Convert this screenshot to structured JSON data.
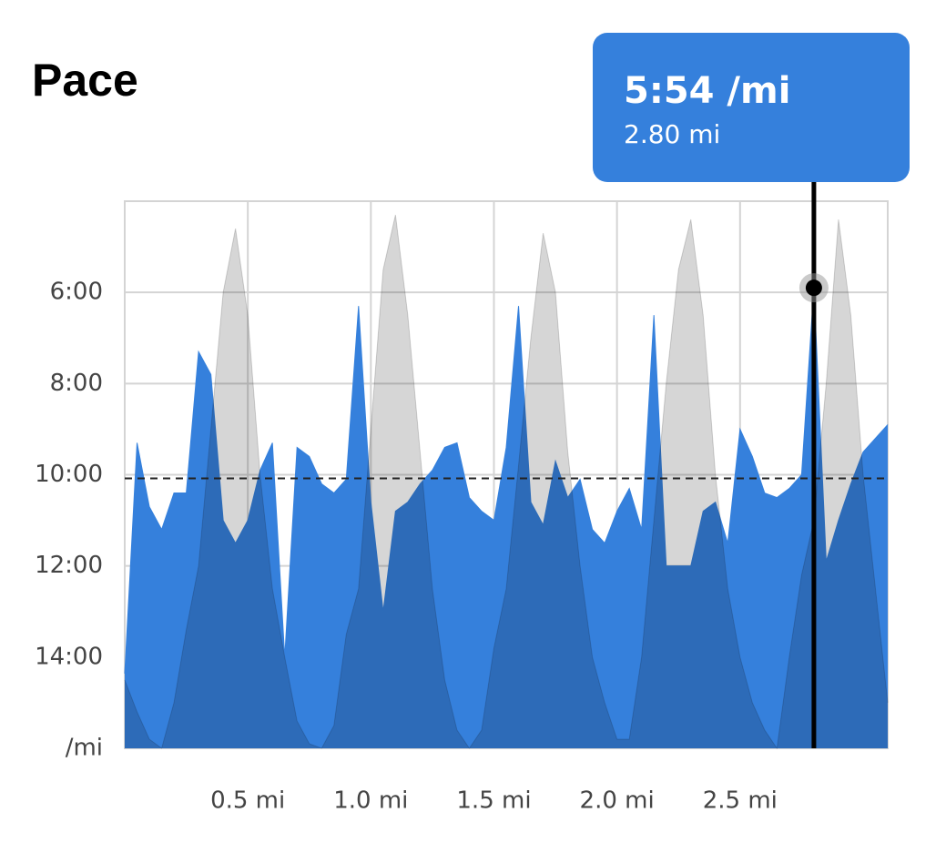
{
  "chart_data": {
    "type": "area",
    "title": "Pace",
    "x": [
      0,
      0.05,
      0.1,
      0.15,
      0.2,
      0.25,
      0.3,
      0.35,
      0.4,
      0.45,
      0.5,
      0.55,
      0.6,
      0.65,
      0.7,
      0.75,
      0.8,
      0.85,
      0.9,
      0.95,
      1,
      1.05,
      1.1,
      1.15,
      1.2,
      1.25,
      1.3,
      1.35,
      1.4,
      1.45,
      1.5,
      1.55,
      1.6,
      1.65,
      1.7,
      1.75,
      1.8,
      1.85,
      1.9,
      1.95,
      2,
      2.05,
      2.1,
      2.15,
      2.2,
      2.25,
      2.3,
      2.35,
      2.4,
      2.45,
      2.5,
      2.55,
      2.6,
      2.65,
      2.7,
      2.75,
      2.8,
      2.85,
      2.9,
      2.95,
      3,
      3.05,
      3.1
    ],
    "series": [
      {
        "color": "#3580dc",
        "values": [
          14.36,
          9.3,
          10.7,
          11.2,
          10.4,
          10.4,
          7.3,
          7.8,
          11.0,
          11.5,
          11.0,
          9.9,
          9.3,
          14.0,
          9.4,
          9.6,
          10.2,
          10.4,
          10.1,
          6.3,
          10.6,
          13.0,
          10.8,
          10.6,
          10.2,
          9.9,
          9.4,
          9.3,
          10.5,
          10.8,
          11.0,
          9.4,
          6.3,
          10.6,
          11.1,
          9.7,
          10.5,
          10.1,
          11.2,
          11.5,
          10.8,
          10.3,
          11.2,
          6.5,
          12.0,
          12.0,
          12.0,
          10.8,
          10.6,
          11.5,
          9.0,
          9.6,
          10.4,
          10.5,
          10.3,
          10.0,
          5.9,
          11.9,
          11.0,
          10.2,
          9.5,
          9.2,
          8.9
        ]
      },
      {
        "color": "#d6d6d6",
        "values": [
          14.5,
          15.2,
          15.8,
          16.0,
          15.0,
          13.4,
          12.0,
          9.0,
          6.0,
          4.6,
          6.5,
          10.0,
          12.5,
          14.0,
          15.4,
          15.9,
          16.0,
          15.5,
          13.5,
          12.5,
          9.0,
          5.5,
          4.3,
          6.5,
          9.5,
          12.5,
          14.5,
          15.6,
          16.0,
          15.6,
          13.8,
          12.5,
          9.8,
          7.0,
          4.7,
          6.0,
          9.5,
          12.0,
          14.0,
          15.0,
          15.8,
          15.8,
          14.0,
          11.0,
          8.0,
          5.5,
          4.4,
          6.5,
          10.0,
          12.5,
          14.0,
          15.0,
          15.6,
          16.0,
          14.0,
          12.2,
          11.0,
          8.0,
          4.4,
          6.5,
          10.0,
          12.5,
          15.0
        ]
      }
    ],
    "xlim": [
      0,
      3.1
    ],
    "xticks": [
      {
        "value": 0.5,
        "label": "0.5 mi"
      },
      {
        "value": 1.0,
        "label": "1.0 mi"
      },
      {
        "value": 1.5,
        "label": "1.5 mi"
      },
      {
        "value": 2.0,
        "label": "2.0 mi"
      },
      {
        "value": 2.5,
        "label": "2.5 mi"
      }
    ],
    "ylim": [
      16,
      4
    ],
    "yticks": [
      {
        "value": 6,
        "label": "6:00"
      },
      {
        "value": 8,
        "label": "8:00"
      },
      {
        "value": 10,
        "label": "10:00"
      },
      {
        "value": 12,
        "label": "12:00"
      },
      {
        "value": 14,
        "label": "14:00"
      },
      {
        "value": 16,
        "label": "/mi"
      }
    ],
    "grid": true,
    "average": 10.08,
    "annotation": {
      "x": 2.8,
      "y": 5.9,
      "title": "5:54 /mi",
      "subtitle": "2.80 mi"
    }
  }
}
